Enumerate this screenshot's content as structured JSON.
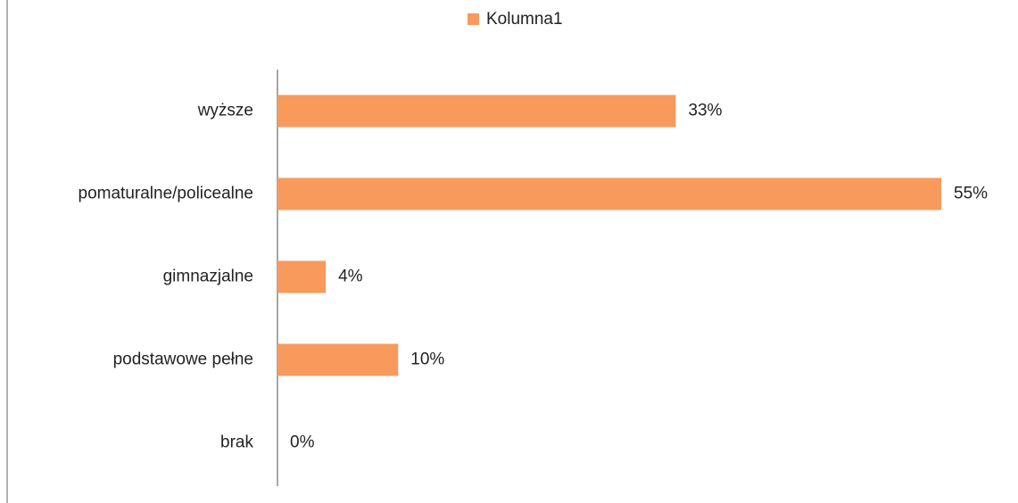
{
  "chart_data": {
    "type": "barh",
    "categories": [
      "wyższe",
      "pomaturalne/policealne",
      "gimnazjalne",
      "podstawowe pełne",
      "brak"
    ],
    "series": [
      {
        "name": "Kolumna1",
        "color": "#f79a5c",
        "values": [
          33,
          55,
          4,
          10,
          0
        ],
        "value_labels": [
          "33%",
          "55%",
          "4%",
          "10%",
          "0%"
        ]
      }
    ],
    "xlim": [
      0,
      55
    ],
    "legend": "top"
  }
}
